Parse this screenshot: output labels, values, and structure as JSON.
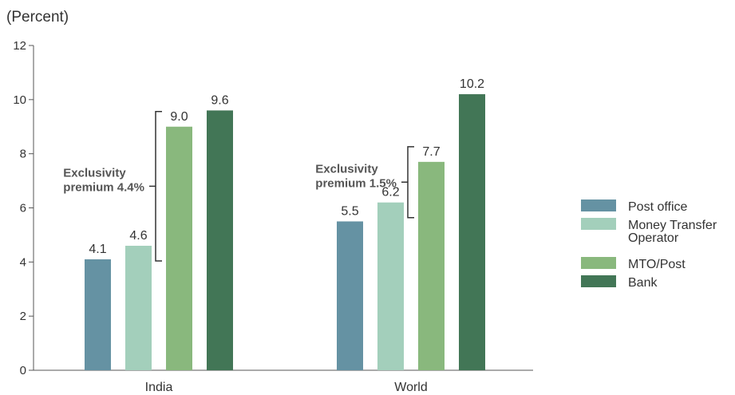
{
  "chart_data": {
    "type": "bar",
    "unit_label": "(Percent)",
    "categories": [
      "India",
      "World"
    ],
    "series": [
      {
        "name": "Post office",
        "color": "#6592a3",
        "values": [
          4.1,
          5.5
        ]
      },
      {
        "name": "Money Transfer Operator",
        "color": "#a3cfbb",
        "values": [
          4.6,
          6.2
        ]
      },
      {
        "name": "MTO/Post",
        "color": "#89b87d",
        "values": [
          9.0,
          7.7
        ]
      },
      {
        "name": "Bank",
        "color": "#427656",
        "values": [
          9.6,
          10.2
        ]
      }
    ],
    "value_labels": [
      [
        "4.1",
        "5.5"
      ],
      [
        "4.6",
        "6.2"
      ],
      [
        "9.0",
        "7.7"
      ],
      [
        "9.6",
        "10.2"
      ]
    ],
    "ylim": [
      0,
      12
    ],
    "yticks": [
      0,
      2,
      4,
      6,
      8,
      10,
      12
    ],
    "grid": false,
    "legend_position": "right",
    "annotations": [
      {
        "category": "India",
        "from_series": 1,
        "to_series": 2,
        "lines": [
          "Exclusivity",
          "premium 4.4%"
        ]
      },
      {
        "category": "World",
        "from_series": 1,
        "to_series": 2,
        "lines": [
          "Exclusivity",
          "premium 1.5%"
        ]
      }
    ]
  }
}
